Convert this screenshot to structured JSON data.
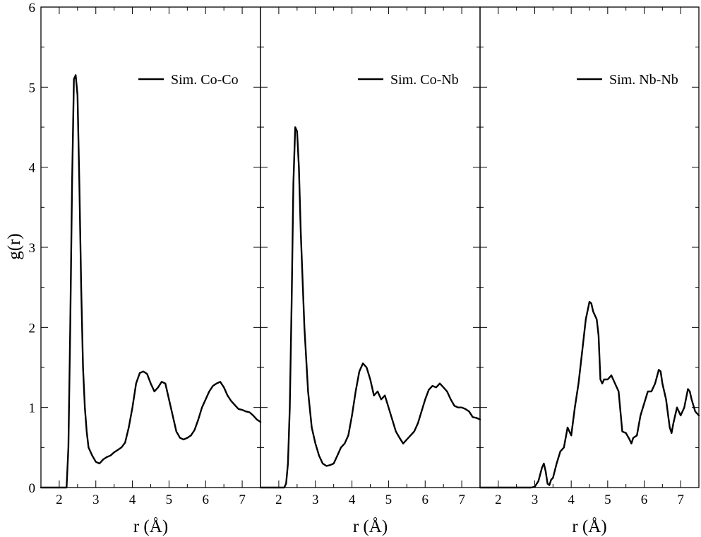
{
  "chart_data": [
    {
      "type": "line",
      "xlabel": "r (Å)",
      "ylabel": "g(r)",
      "xlim": [
        1.5,
        7.5
      ],
      "ylim": [
        0,
        6
      ],
      "x_ticks": [
        "2",
        "3",
        "4",
        "5",
        "6",
        "7"
      ],
      "y_ticks": [
        "0",
        "1",
        "2",
        "3",
        "4",
        "5",
        "6"
      ],
      "legend_position": "top-right",
      "series": [
        {
          "name": "Sim. Co-Co",
          "color": "#000000",
          "points": [
            [
              1.5,
              0
            ],
            [
              2.2,
              0
            ],
            [
              2.25,
              0.5
            ],
            [
              2.3,
              2.0
            ],
            [
              2.35,
              3.8
            ],
            [
              2.4,
              5.1
            ],
            [
              2.45,
              5.15
            ],
            [
              2.5,
              4.9
            ],
            [
              2.55,
              3.8
            ],
            [
              2.6,
              2.5
            ],
            [
              2.65,
              1.5
            ],
            [
              2.7,
              1.0
            ],
            [
              2.75,
              0.7
            ],
            [
              2.8,
              0.5
            ],
            [
              2.9,
              0.4
            ],
            [
              3.0,
              0.32
            ],
            [
              3.1,
              0.3
            ],
            [
              3.2,
              0.35
            ],
            [
              3.3,
              0.38
            ],
            [
              3.4,
              0.4
            ],
            [
              3.5,
              0.44
            ],
            [
              3.6,
              0.47
            ],
            [
              3.7,
              0.5
            ],
            [
              3.8,
              0.56
            ],
            [
              3.9,
              0.75
            ],
            [
              4.0,
              1.0
            ],
            [
              4.1,
              1.3
            ],
            [
              4.2,
              1.43
            ],
            [
              4.3,
              1.45
            ],
            [
              4.4,
              1.42
            ],
            [
              4.5,
              1.3
            ],
            [
              4.6,
              1.2
            ],
            [
              4.7,
              1.25
            ],
            [
              4.8,
              1.32
            ],
            [
              4.9,
              1.3
            ],
            [
              5.0,
              1.1
            ],
            [
              5.1,
              0.9
            ],
            [
              5.2,
              0.7
            ],
            [
              5.3,
              0.62
            ],
            [
              5.4,
              0.6
            ],
            [
              5.5,
              0.62
            ],
            [
              5.6,
              0.65
            ],
            [
              5.7,
              0.72
            ],
            [
              5.8,
              0.85
            ],
            [
              5.9,
              1.0
            ],
            [
              6.0,
              1.1
            ],
            [
              6.1,
              1.2
            ],
            [
              6.2,
              1.27
            ],
            [
              6.3,
              1.3
            ],
            [
              6.4,
              1.32
            ],
            [
              6.5,
              1.25
            ],
            [
              6.6,
              1.15
            ],
            [
              6.7,
              1.08
            ],
            [
              6.8,
              1.03
            ],
            [
              6.9,
              0.98
            ],
            [
              7.0,
              0.97
            ],
            [
              7.1,
              0.95
            ],
            [
              7.2,
              0.94
            ],
            [
              7.3,
              0.9
            ],
            [
              7.4,
              0.85
            ],
            [
              7.5,
              0.82
            ]
          ]
        },
        {
          "name": "Sim. Co-Nb",
          "color": "#000000",
          "points": [
            [
              1.5,
              0
            ],
            [
              2.15,
              0
            ],
            [
              2.2,
              0.05
            ],
            [
              2.25,
              0.3
            ],
            [
              2.3,
              1.0
            ],
            [
              2.35,
              2.3
            ],
            [
              2.4,
              3.8
            ],
            [
              2.45,
              4.5
            ],
            [
              2.5,
              4.45
            ],
            [
              2.55,
              4.0
            ],
            [
              2.6,
              3.2
            ],
            [
              2.7,
              2.0
            ],
            [
              2.8,
              1.2
            ],
            [
              2.9,
              0.75
            ],
            [
              3.0,
              0.55
            ],
            [
              3.1,
              0.4
            ],
            [
              3.2,
              0.3
            ],
            [
              3.3,
              0.27
            ],
            [
              3.4,
              0.28
            ],
            [
              3.5,
              0.3
            ],
            [
              3.6,
              0.4
            ],
            [
              3.7,
              0.5
            ],
            [
              3.8,
              0.55
            ],
            [
              3.9,
              0.65
            ],
            [
              4.0,
              0.9
            ],
            [
              4.1,
              1.2
            ],
            [
              4.2,
              1.45
            ],
            [
              4.3,
              1.55
            ],
            [
              4.4,
              1.5
            ],
            [
              4.5,
              1.35
            ],
            [
              4.6,
              1.15
            ],
            [
              4.7,
              1.2
            ],
            [
              4.8,
              1.1
            ],
            [
              4.9,
              1.15
            ],
            [
              5.0,
              1.0
            ],
            [
              5.1,
              0.85
            ],
            [
              5.2,
              0.7
            ],
            [
              5.3,
              0.62
            ],
            [
              5.4,
              0.55
            ],
            [
              5.5,
              0.6
            ],
            [
              5.6,
              0.65
            ],
            [
              5.7,
              0.7
            ],
            [
              5.8,
              0.8
            ],
            [
              5.9,
              0.95
            ],
            [
              6.0,
              1.1
            ],
            [
              6.1,
              1.22
            ],
            [
              6.2,
              1.27
            ],
            [
              6.3,
              1.25
            ],
            [
              6.4,
              1.3
            ],
            [
              6.5,
              1.25
            ],
            [
              6.6,
              1.2
            ],
            [
              6.7,
              1.1
            ],
            [
              6.8,
              1.02
            ],
            [
              6.9,
              1.0
            ],
            [
              7.0,
              1.0
            ],
            [
              7.1,
              0.98
            ],
            [
              7.2,
              0.95
            ],
            [
              7.3,
              0.88
            ],
            [
              7.4,
              0.87
            ],
            [
              7.5,
              0.85
            ]
          ]
        },
        {
          "name": "Sim. Nb-Nb",
          "color": "#000000",
          "points": [
            [
              1.5,
              0
            ],
            [
              2.9,
              0
            ],
            [
              3.0,
              0.01
            ],
            [
              3.1,
              0.08
            ],
            [
              3.2,
              0.25
            ],
            [
              3.25,
              0.3
            ],
            [
              3.3,
              0.2
            ],
            [
              3.35,
              0.05
            ],
            [
              3.4,
              0.03
            ],
            [
              3.45,
              0.1
            ],
            [
              3.5,
              0.12
            ],
            [
              3.6,
              0.3
            ],
            [
              3.7,
              0.45
            ],
            [
              3.8,
              0.5
            ],
            [
              3.9,
              0.75
            ],
            [
              4.0,
              0.65
            ],
            [
              4.1,
              1.0
            ],
            [
              4.2,
              1.3
            ],
            [
              4.3,
              1.7
            ],
            [
              4.4,
              2.1
            ],
            [
              4.5,
              2.32
            ],
            [
              4.55,
              2.3
            ],
            [
              4.6,
              2.2
            ],
            [
              4.7,
              2.1
            ],
            [
              4.75,
              1.9
            ],
            [
              4.8,
              1.35
            ],
            [
              4.85,
              1.3
            ],
            [
              4.9,
              1.35
            ],
            [
              5.0,
              1.35
            ],
            [
              5.1,
              1.4
            ],
            [
              5.2,
              1.3
            ],
            [
              5.3,
              1.2
            ],
            [
              5.4,
              0.7
            ],
            [
              5.5,
              0.68
            ],
            [
              5.6,
              0.6
            ],
            [
              5.65,
              0.55
            ],
            [
              5.7,
              0.62
            ],
            [
              5.8,
              0.65
            ],
            [
              5.9,
              0.9
            ],
            [
              6.0,
              1.05
            ],
            [
              6.1,
              1.2
            ],
            [
              6.2,
              1.2
            ],
            [
              6.3,
              1.3
            ],
            [
              6.4,
              1.47
            ],
            [
              6.45,
              1.45
            ],
            [
              6.5,
              1.3
            ],
            [
              6.6,
              1.1
            ],
            [
              6.7,
              0.75
            ],
            [
              6.75,
              0.68
            ],
            [
              6.8,
              0.8
            ],
            [
              6.9,
              1.0
            ],
            [
              7.0,
              0.9
            ],
            [
              7.1,
              1.0
            ],
            [
              7.2,
              1.23
            ],
            [
              7.25,
              1.2
            ],
            [
              7.3,
              1.1
            ],
            [
              7.4,
              0.95
            ],
            [
              7.5,
              0.9
            ]
          ]
        }
      ]
    }
  ]
}
